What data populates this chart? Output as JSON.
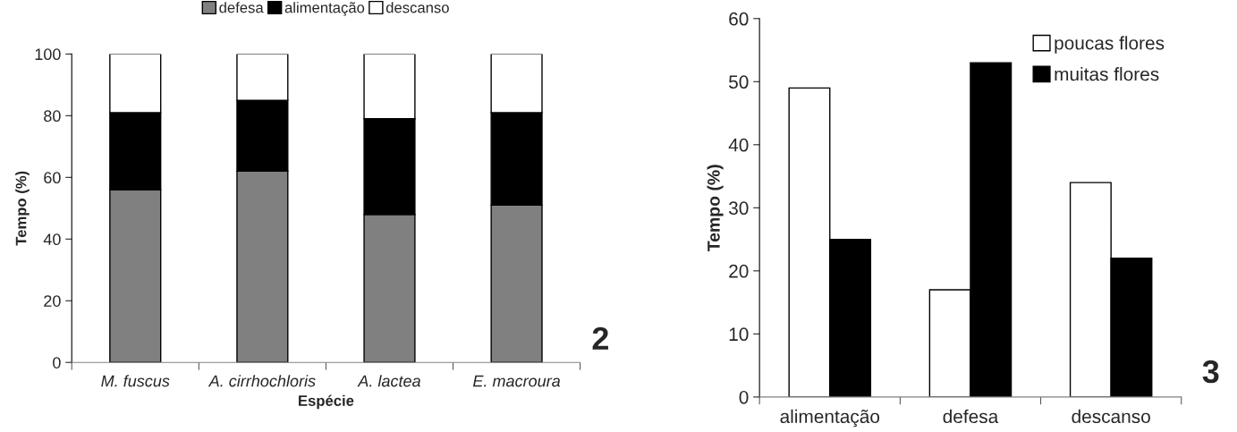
{
  "chart_data": [
    {
      "type": "bar",
      "stacked": true,
      "categories": [
        "M. fuscus",
        "A. cirrhochloris",
        "A. lactea",
        "E. macroura"
      ],
      "xlabel": "Espécie",
      "ylabel": "Tempo (%)",
      "ylim": [
        0,
        100
      ],
      "yticks": [
        0,
        20,
        40,
        60,
        80,
        100
      ],
      "grid": false,
      "legend": "top",
      "annotations": [
        "2"
      ],
      "series": [
        {
          "name": "defesa",
          "color": "#808080",
          "values": [
            56,
            62,
            48,
            51
          ]
        },
        {
          "name": "alimentação",
          "color": "#000000",
          "values": [
            25,
            23,
            31,
            30
          ]
        },
        {
          "name": "descanso",
          "color": "#ffffff",
          "values": [
            19,
            15,
            21,
            19
          ]
        }
      ]
    },
    {
      "type": "bar",
      "categories": [
        "alimentação",
        "defesa",
        "descanso"
      ],
      "ylabel": "Tempo (%)",
      "ylim": [
        0,
        60
      ],
      "yticks": [
        0,
        10,
        20,
        30,
        40,
        50,
        60
      ],
      "grid": false,
      "legend": "top right",
      "annotations": [
        "3"
      ],
      "series": [
        {
          "name": "poucas flores",
          "color": "#ffffff",
          "values": [
            49,
            17,
            34
          ]
        },
        {
          "name": "muitas flores",
          "color": "#000000",
          "values": [
            25,
            53,
            22
          ]
        }
      ]
    }
  ]
}
